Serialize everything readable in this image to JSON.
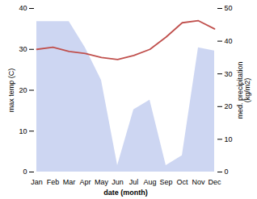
{
  "chart_data": {
    "type": "line",
    "xlabel": "date (month)",
    "ylabel": "max temp (C)",
    "y2label": "med. precipitation\n(kg/m2)",
    "categories": [
      "Jan",
      "Feb",
      "Mar",
      "Apr",
      "May",
      "Jun",
      "Jul",
      "Aug",
      "Sep",
      "Oct",
      "Nov",
      "Dec"
    ],
    "ylim": [
      0,
      40
    ],
    "yticks": [
      0,
      10,
      20,
      30,
      40
    ],
    "y2lim": [
      0,
      50
    ],
    "y2ticks": [
      0,
      10,
      20,
      30,
      40,
      50
    ],
    "series": [
      {
        "type": "area",
        "color": "#b8c4ed",
        "axis": "y2",
        "values": [
          46,
          46,
          46,
          38,
          28,
          2,
          19,
          22,
          2,
          5,
          38,
          37
        ]
      },
      {
        "type": "line",
        "color": "#c0504d",
        "values": [
          30.0,
          30.5,
          29.5,
          29.0,
          28.0,
          27.5,
          28.5,
          30.0,
          33.0,
          36.5,
          37.0,
          35.0
        ]
      }
    ]
  }
}
